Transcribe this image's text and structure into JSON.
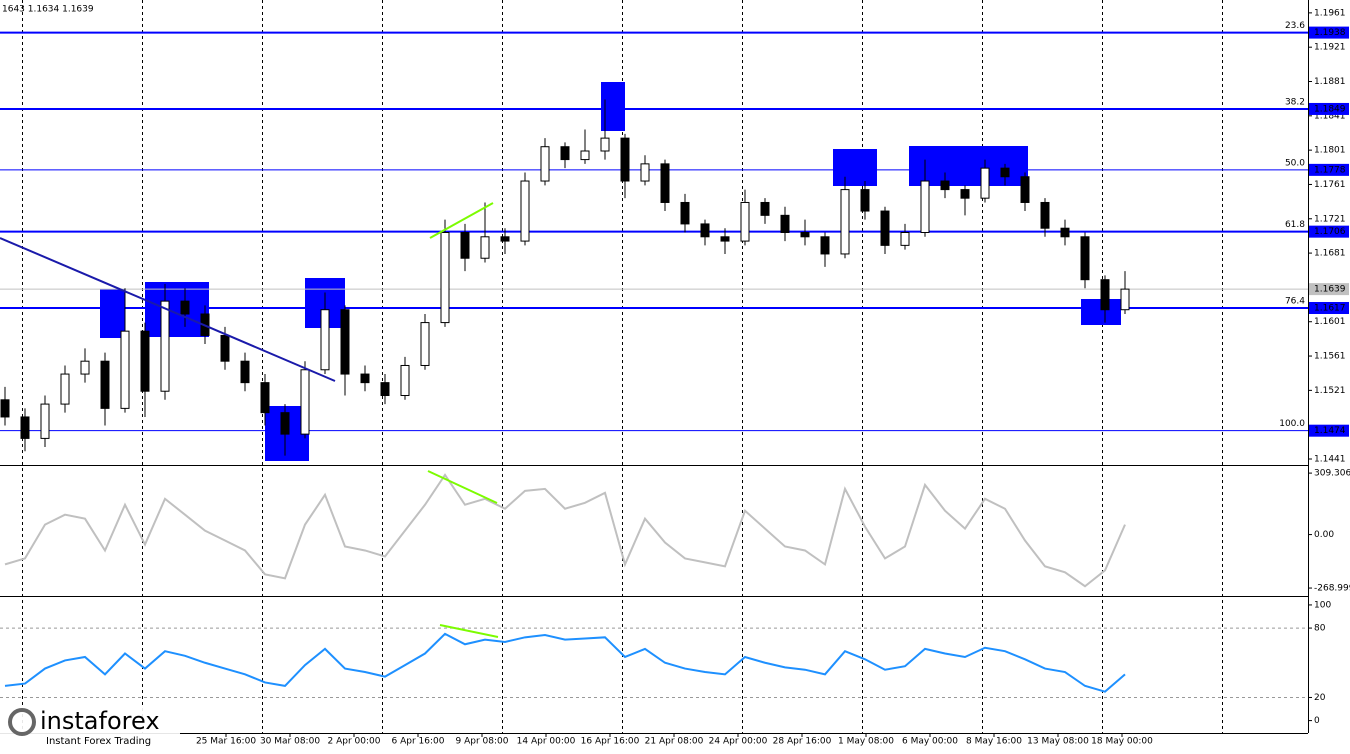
{
  "chart_data": [
    {
      "type": "candlestick",
      "title": "1643 1.1634 1.1639",
      "open": [
        1.151,
        1.149,
        1.1465,
        1.1505,
        1.154,
        1.1555,
        1.15,
        1.159,
        1.152,
        1.1625,
        1.161,
        1.1585,
        1.1555,
        1.153,
        1.1495,
        1.147,
        1.1545,
        1.1615,
        1.154,
        1.153,
        1.1515,
        1.155,
        1.16,
        1.1705,
        1.1675,
        1.17,
        1.1695,
        1.1765,
        1.1805,
        1.179,
        1.18,
        1.1815,
        1.1765,
        1.1785,
        1.174,
        1.1715,
        1.17,
        1.1695,
        1.174,
        1.1725,
        1.1705,
        1.17,
        1.168,
        1.1755,
        1.173,
        1.169,
        1.1705,
        1.1765,
        1.1755,
        1.1745,
        1.178,
        1.177,
        1.174,
        1.171,
        1.17,
        1.165,
        1.1615
      ],
      "high": [
        1.1525,
        1.15,
        1.1515,
        1.155,
        1.157,
        1.1565,
        1.164,
        1.16,
        1.1645,
        1.164,
        1.162,
        1.1595,
        1.1565,
        1.154,
        1.1505,
        1.1555,
        1.1635,
        1.162,
        1.155,
        1.154,
        1.156,
        1.161,
        1.172,
        1.1715,
        1.174,
        1.171,
        1.1775,
        1.1815,
        1.181,
        1.1825,
        1.186,
        1.182,
        1.1795,
        1.179,
        1.175,
        1.172,
        1.171,
        1.1755,
        1.1745,
        1.1735,
        1.172,
        1.1705,
        1.177,
        1.1765,
        1.1735,
        1.1715,
        1.179,
        1.1775,
        1.176,
        1.179,
        1.1785,
        1.1775,
        1.1745,
        1.172,
        1.1705,
        1.1655,
        1.166
      ],
      "low": [
        1.148,
        1.145,
        1.1455,
        1.1495,
        1.153,
        1.148,
        1.1495,
        1.149,
        1.151,
        1.1595,
        1.1575,
        1.1545,
        1.152,
        1.148,
        1.1445,
        1.1465,
        1.154,
        1.1515,
        1.152,
        1.1505,
        1.151,
        1.1545,
        1.1595,
        1.166,
        1.167,
        1.168,
        1.169,
        1.176,
        1.178,
        1.1785,
        1.179,
        1.1745,
        1.176,
        1.173,
        1.1705,
        1.169,
        1.168,
        1.169,
        1.1715,
        1.1695,
        1.169,
        1.1665,
        1.1675,
        1.172,
        1.168,
        1.1685,
        1.17,
        1.1745,
        1.1725,
        1.174,
        1.176,
        1.173,
        1.17,
        1.169,
        1.164,
        1.16,
        1.161
      ],
      "close": [
        1.149,
        1.1465,
        1.1505,
        1.154,
        1.1555,
        1.15,
        1.159,
        1.152,
        1.1625,
        1.161,
        1.1585,
        1.1555,
        1.153,
        1.1495,
        1.147,
        1.1545,
        1.1615,
        1.154,
        1.153,
        1.1515,
        1.155,
        1.16,
        1.1705,
        1.1675,
        1.17,
        1.1695,
        1.1765,
        1.1805,
        1.179,
        1.18,
        1.1815,
        1.1765,
        1.1785,
        1.174,
        1.1715,
        1.17,
        1.1695,
        1.174,
        1.1725,
        1.1705,
        1.17,
        1.168,
        1.1755,
        1.173,
        1.169,
        1.1705,
        1.1765,
        1.1755,
        1.1745,
        1.178,
        1.177,
        1.174,
        1.171,
        1.17,
        1.165,
        1.1615,
        1.1639
      ],
      "ylim": [
        1.1434,
        1.1976
      ],
      "yticks": [
        1.1961,
        1.1921,
        1.1881,
        1.1841,
        1.1801,
        1.1761,
        1.1721,
        1.1681,
        1.1601,
        1.1561,
        1.1521,
        1.1441
      ],
      "levels": [
        {
          "ratio": 23.6,
          "price": 1.1938
        },
        {
          "ratio": 38.2,
          "price": 1.1849
        },
        {
          "ratio": {
            "value": 50,
            "label": "50.0"
          },
          "price": 1.1778
        },
        {
          "ratio": 61.8,
          "price": 1.1706
        },
        {
          "ratio": 76.4,
          "price": 1.1617
        },
        {
          "ratio": {
            "value": 100,
            "label": "100.0"
          },
          "price": 1.1474
        }
      ],
      "last_price": 1.1639,
      "x_labels": [
        "25 Mar 16:00",
        "30 Mar 08:00",
        "2 Apr 00:00",
        "6 Apr 16:00",
        "9 Apr 08:00",
        "14 Apr 00:00",
        "16 Apr 16:00",
        "21 Apr 08:00",
        "24 Apr 00:00",
        "28 Apr 16:00",
        "1 May 08:00",
        "6 May 00:00",
        "8 May 16:00",
        "13 May 08:00",
        "18 May 00:00"
      ],
      "color": "#0000ff"
    },
    {
      "type": "line",
      "color": "#c0c0c0",
      "values": [
        -150,
        -120,
        50,
        100,
        80,
        -80,
        150,
        -50,
        180,
        100,
        20,
        -30,
        -80,
        -200,
        -220,
        50,
        200,
        -60,
        -80,
        -110,
        20,
        150,
        300,
        150,
        180,
        130,
        220,
        230,
        130,
        160,
        210,
        -150,
        80,
        -40,
        -120,
        -140,
        -160,
        120,
        30,
        -60,
        -80,
        -150,
        230,
        40,
        -120,
        -60,
        250,
        120,
        30,
        180,
        130,
        -30,
        -160,
        -190,
        -260,
        -180,
        50
      ],
      "ylim": [
        -304,
        340
      ],
      "yticks": [
        309.3066,
        {
          "value": 0,
          "label": "0.00"
        },
        -268.999
      ]
    },
    {
      "type": "line",
      "color": "#1e90ff",
      "values": [
        30,
        32,
        45,
        52,
        55,
        40,
        58,
        45,
        60,
        56,
        50,
        45,
        40,
        33,
        30,
        48,
        62,
        45,
        42,
        38,
        48,
        58,
        75,
        66,
        70,
        68,
        72,
        74,
        70,
        71,
        72,
        55,
        62,
        50,
        45,
        42,
        40,
        55,
        50,
        46,
        44,
        40,
        60,
        53,
        44,
        47,
        62,
        58,
        55,
        63,
        60,
        53,
        45,
        42,
        30,
        25,
        40
      ],
      "ylim": [
        -9,
        106
      ],
      "yticks": [
        100,
        80,
        20,
        0
      ],
      "dashed_levels": [
        80,
        20
      ]
    }
  ],
  "watermark": {
    "brand": "instaforex",
    "slogan": "Instant Forex Trading"
  }
}
